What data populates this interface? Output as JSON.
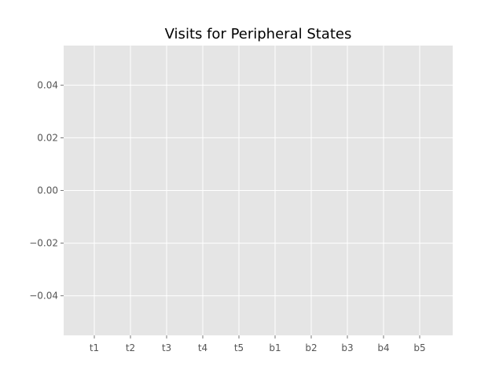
{
  "chart_data": {
    "type": "bar",
    "title": "Visits for Peripheral States",
    "xlabel": "",
    "ylabel": "",
    "categories": [
      "t1",
      "t2",
      "t3",
      "t4",
      "t5",
      "b1",
      "b2",
      "b3",
      "b4",
      "b5"
    ],
    "series": [
      {
        "values": [
          0,
          0,
          0,
          0,
          0,
          0,
          0,
          0,
          0,
          0
        ]
      }
    ],
    "ylim": [
      -0.055,
      0.055
    ],
    "yticks": [
      -0.04,
      -0.02,
      0.0,
      0.02,
      0.04
    ],
    "ytick_labels": [
      "−0.04",
      "−0.02",
      "0.00",
      "0.02",
      "0.04"
    ],
    "grid": true,
    "legend": "none",
    "style": {
      "axes_bg": "#e5e5e5",
      "grid_color": "#ffffff",
      "tick_label_color": "#555555",
      "title_color": "#000000"
    }
  }
}
